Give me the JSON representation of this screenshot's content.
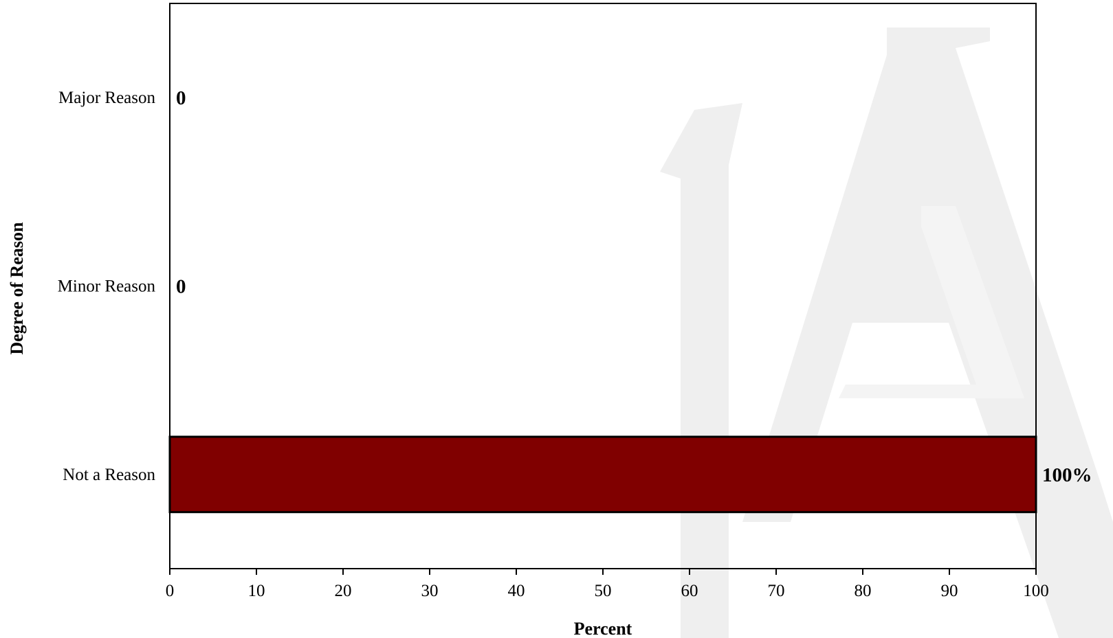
{
  "chart_data": {
    "type": "bar",
    "orientation": "horizontal",
    "categories": [
      "Major Reason",
      "Minor Reason",
      "Not a Reason"
    ],
    "values": [
      0,
      0,
      100
    ],
    "data_labels": [
      "0",
      "0",
      "100%"
    ],
    "xlabel": "Percent",
    "ylabel": "Degree of Reason",
    "xlim": [
      0,
      100
    ],
    "xticks": [
      0,
      10,
      20,
      30,
      40,
      50,
      60,
      70,
      80,
      90,
      100
    ],
    "grid": false,
    "legend": "none",
    "bar_color": "#800000",
    "bar_outline_color": "#000000"
  },
  "watermark": {
    "description-icon": "university-seal-watermark-icon",
    "color": "#efefef"
  }
}
